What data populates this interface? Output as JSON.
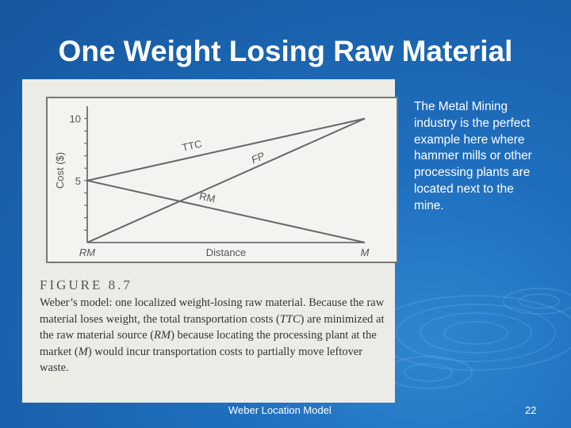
{
  "slide": {
    "title": "One Weight Losing Raw Material",
    "side_text": "The Metal Mining industry is the perfect example here where hammer mills or other processing plants are located next to the mine.",
    "footer": "Weber Location Model",
    "page_number": "22"
  },
  "figure": {
    "caption_head": "FIGURE 8.7",
    "caption_body_parts": [
      {
        "t": "Weber’s model: one localized weight-losing raw material. Because the raw material loses weight, the total transportation costs (",
        "i": false
      },
      {
        "t": "TTC",
        "i": true
      },
      {
        "t": ") are minimized at the raw material source (",
        "i": false
      },
      {
        "t": "RM",
        "i": true
      },
      {
        "t": ") because locating the processing plant at the market (",
        "i": false
      },
      {
        "t": "M",
        "i": true
      },
      {
        "t": ") would incur transportation costs to partially move leftover waste.",
        "i": false
      }
    ]
  },
  "chart_data": {
    "type": "line",
    "xlabel": "Distance",
    "ylabel": "Cost ($)",
    "x_tick_labels": [
      "RM",
      "M"
    ],
    "y_ticks": [
      5,
      10
    ],
    "x": [
      0,
      1
    ],
    "ylim": [
      0,
      11
    ],
    "series": [
      {
        "name": "TTC",
        "values": [
          5,
          10
        ]
      },
      {
        "name": "RM",
        "values": [
          5,
          0
        ]
      },
      {
        "name": "FP",
        "values": [
          0,
          10
        ]
      }
    ]
  }
}
